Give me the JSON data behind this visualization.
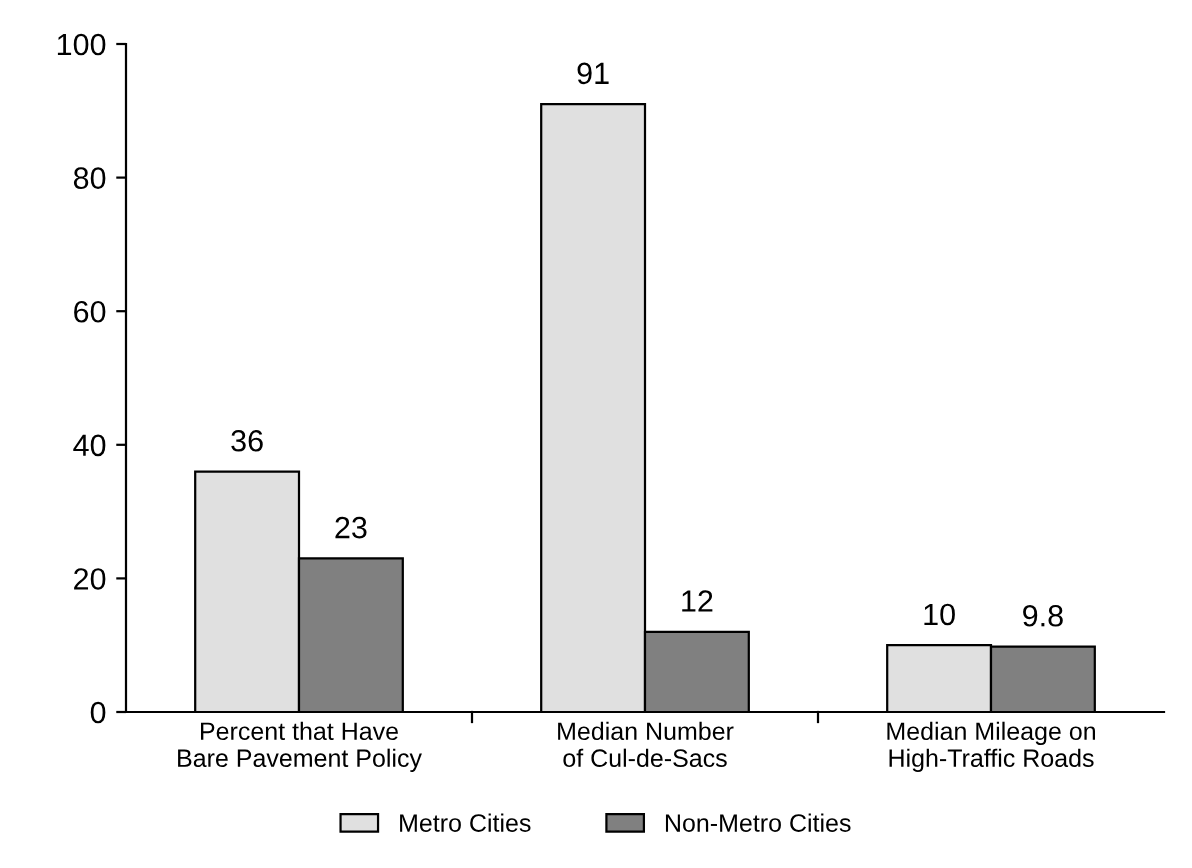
{
  "chart_data": {
    "type": "bar",
    "categories": [
      "Percent that Have\nBare Pavement Policy",
      "Median Number\nof Cul-de-Sacs",
      "Median Mileage on\nHigh-Traffic Roads"
    ],
    "series": [
      {
        "name": "Metro Cities",
        "color": "#e0e0e0",
        "values": [
          36,
          91,
          10
        ]
      },
      {
        "name": "Non-Metro Cities",
        "color": "#808080",
        "values": [
          23,
          12,
          9.8
        ]
      }
    ],
    "ylim": [
      0,
      100
    ],
    "yticks": [
      0,
      20,
      40,
      60,
      80,
      100
    ],
    "data_labels": true,
    "legend": "bottom",
    "grid": false
  }
}
